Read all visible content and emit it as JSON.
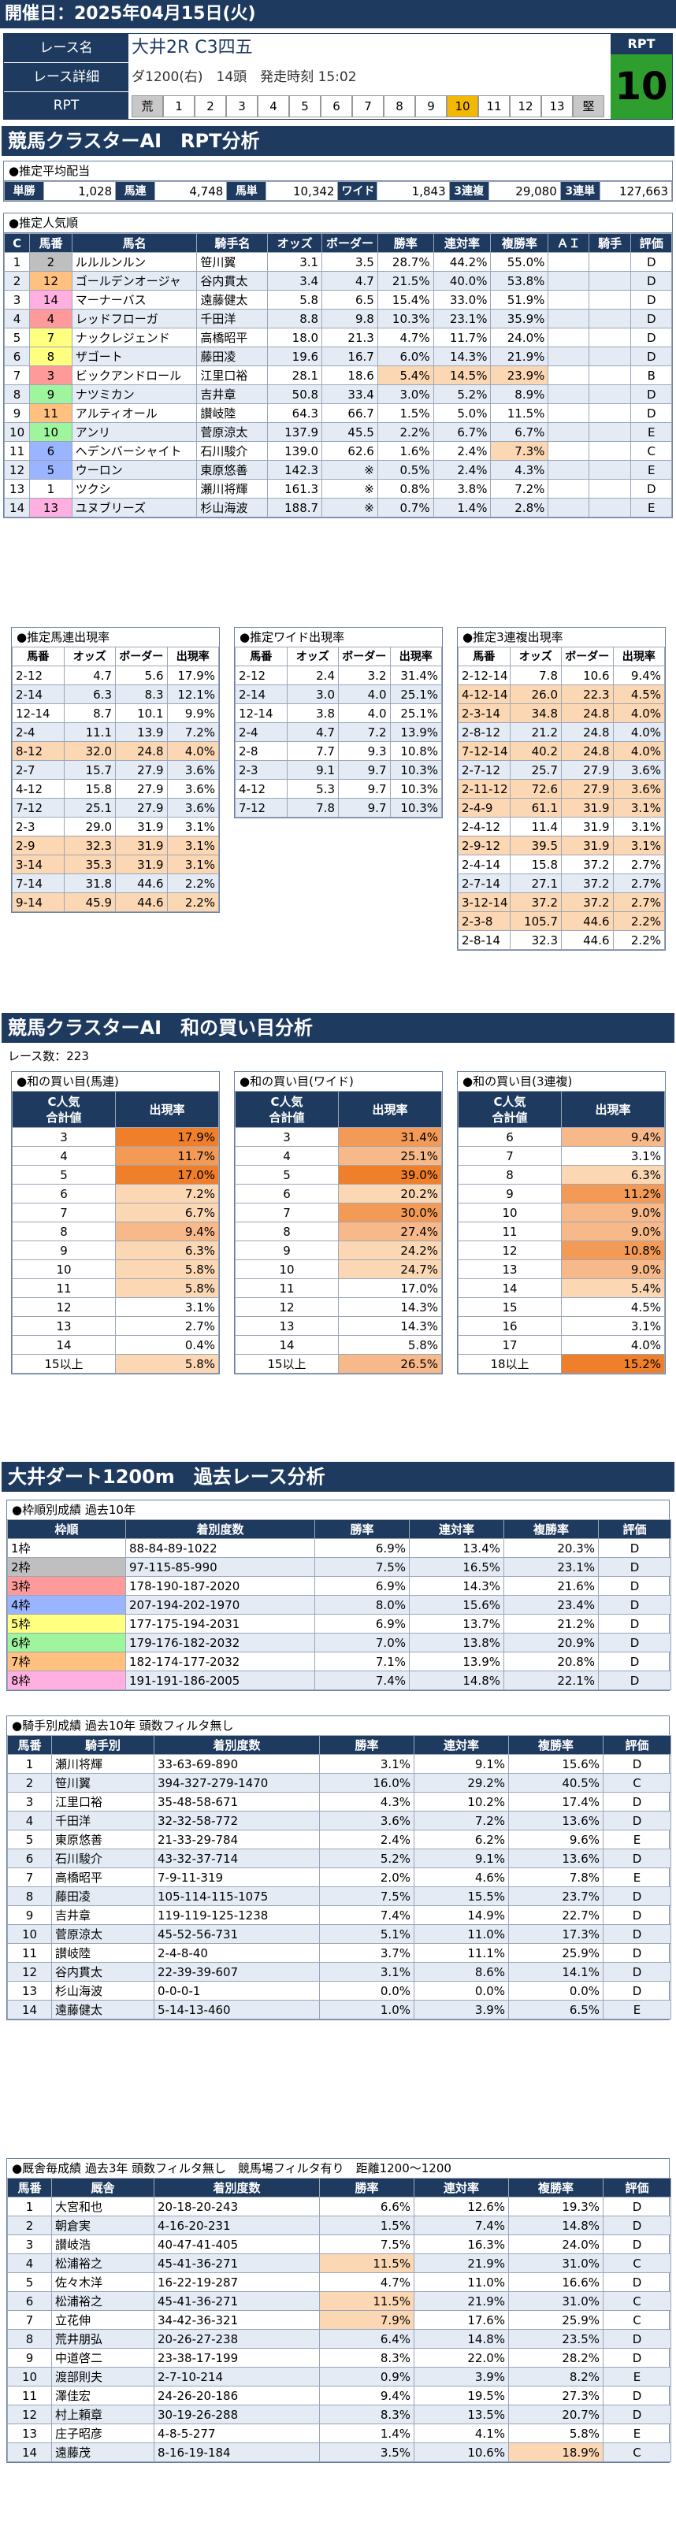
{
  "header": {
    "date": "開催日：2025年04月15日(火)",
    "race_label": "レース名",
    "race_name": "大井2R C3四五",
    "detail_label": "レース詳細",
    "detail_value": "ダ1200(右)　14頭　発走時刻 15:02",
    "rpt_label": "RPT",
    "rpt_value_label": "RPT",
    "rpt_value": "10",
    "scale_start": "荒",
    "scale_end": "堅",
    "scale": [
      "1",
      "2",
      "3",
      "4",
      "5",
      "6",
      "7",
      "8",
      "9",
      "10",
      "11",
      "12",
      "13"
    ],
    "scale_highlight": "10"
  },
  "s1": {
    "title": "競馬クラスターAI　RPT分析",
    "pay_title": "●推定平均配当",
    "pay": [
      [
        "単勝",
        "1,028"
      ],
      [
        "馬連",
        "4,748"
      ],
      [
        "馬単",
        "10,342"
      ],
      [
        "ワイド",
        "1,843"
      ],
      [
        "3連複",
        "29,080"
      ],
      [
        "3連単",
        "127,663"
      ]
    ],
    "pop_title": "●推定人気順",
    "pop_headers": [
      "C",
      "馬番",
      "馬名",
      "騎手名",
      "オッズ",
      "ボーダー",
      "勝率",
      "連対率",
      "複勝率",
      "ＡＩ",
      "騎手",
      "評価"
    ],
    "pop_rows": [
      [
        "1",
        "2",
        "ルルルンルン",
        "笹川翼",
        "3.1",
        "3.5",
        "28.7%",
        "44.2%",
        "55.0%",
        "",
        "",
        "D"
      ],
      [
        "2",
        "12",
        "ゴールデンオージャ",
        "谷内貫太",
        "3.4",
        "4.7",
        "21.5%",
        "40.0%",
        "53.8%",
        "",
        "",
        "D"
      ],
      [
        "3",
        "14",
        "マーナーバス",
        "遠藤健太",
        "5.8",
        "6.5",
        "15.4%",
        "33.0%",
        "51.9%",
        "",
        "",
        "D"
      ],
      [
        "4",
        "4",
        "レッドフローガ",
        "千田洋",
        "8.8",
        "9.8",
        "10.3%",
        "23.1%",
        "35.9%",
        "",
        "",
        "D"
      ],
      [
        "5",
        "7",
        "ナックレジェンド",
        "高橋昭平",
        "18.0",
        "21.3",
        "4.7%",
        "11.7%",
        "24.0%",
        "",
        "",
        "D"
      ],
      [
        "6",
        "8",
        "ザゴート",
        "藤田凌",
        "19.6",
        "16.7",
        "6.0%",
        "14.3%",
        "21.9%",
        "",
        "",
        "D"
      ],
      [
        "7",
        "3",
        "ビックアンドロール",
        "江里口裕",
        "28.1",
        "18.6",
        "5.4%",
        "14.5%",
        "23.9%",
        "",
        "",
        "B"
      ],
      [
        "8",
        "9",
        "ナツミカン",
        "吉井章",
        "50.8",
        "33.4",
        "3.0%",
        "5.2%",
        "8.9%",
        "",
        "",
        "D"
      ],
      [
        "9",
        "11",
        "アルティオール",
        "讃岐陸",
        "64.3",
        "66.7",
        "1.5%",
        "5.0%",
        "11.5%",
        "",
        "",
        "D"
      ],
      [
        "10",
        "10",
        "アンリ",
        "菅原涼太",
        "137.9",
        "45.5",
        "2.2%",
        "6.7%",
        "6.7%",
        "",
        "",
        "E"
      ],
      [
        "11",
        "6",
        "ヘデンバーシャイト",
        "石川駿介",
        "139.0",
        "62.6",
        "1.6%",
        "2.4%",
        "7.3%",
        "",
        "",
        "C"
      ],
      [
        "12",
        "5",
        "ウーロン",
        "東原悠善",
        "142.3",
        "※",
        "0.5%",
        "2.4%",
        "4.3%",
        "",
        "",
        "E"
      ],
      [
        "13",
        "1",
        "ツクシ",
        "瀬川将輝",
        "161.3",
        "※",
        "0.8%",
        "3.8%",
        "7.2%",
        "",
        "",
        "D"
      ],
      [
        "14",
        "13",
        "ユヌブリーズ",
        "杉山海波",
        "188.7",
        "※",
        "0.7%",
        "1.4%",
        "2.8%",
        "",
        "",
        "E"
      ]
    ],
    "umaren_title": "●推定馬連出現率",
    "wide_title": "●推定ワイド出現率",
    "sanren_title": "●推定3連複出現率",
    "mini_headers": [
      "馬番",
      "オッズ",
      "ボーダー",
      "出現率"
    ],
    "umaren": [
      [
        "2-12",
        "4.7",
        "5.6",
        "17.9%"
      ],
      [
        "2-14",
        "6.3",
        "8.3",
        "12.1%"
      ],
      [
        "12-14",
        "8.7",
        "10.1",
        "9.9%"
      ],
      [
        "2-4",
        "11.1",
        "13.9",
        "7.2%"
      ],
      [
        "8-12",
        "32.0",
        "24.8",
        "4.0%"
      ],
      [
        "2-7",
        "15.7",
        "27.9",
        "3.6%"
      ],
      [
        "4-12",
        "15.8",
        "27.9",
        "3.6%"
      ],
      [
        "7-12",
        "25.1",
        "27.9",
        "3.6%"
      ],
      [
        "2-3",
        "29.0",
        "31.9",
        "3.1%"
      ],
      [
        "2-9",
        "32.3",
        "31.9",
        "3.1%"
      ],
      [
        "3-14",
        "35.3",
        "31.9",
        "3.1%"
      ],
      [
        "7-14",
        "31.8",
        "44.6",
        "2.2%"
      ],
      [
        "9-14",
        "45.9",
        "44.6",
        "2.2%"
      ]
    ],
    "wide": [
      [
        "2-12",
        "2.4",
        "3.2",
        "31.4%"
      ],
      [
        "2-14",
        "3.0",
        "4.0",
        "25.1%"
      ],
      [
        "12-14",
        "3.8",
        "4.0",
        "25.1%"
      ],
      [
        "2-4",
        "4.7",
        "7.2",
        "13.9%"
      ],
      [
        "2-8",
        "7.7",
        "9.3",
        "10.8%"
      ],
      [
        "2-3",
        "9.1",
        "9.7",
        "10.3%"
      ],
      [
        "4-12",
        "5.3",
        "9.7",
        "10.3%"
      ],
      [
        "7-12",
        "7.8",
        "9.7",
        "10.3%"
      ]
    ],
    "sanren": [
      [
        "2-12-14",
        "7.8",
        "10.6",
        "9.4%"
      ],
      [
        "4-12-14",
        "26.0",
        "22.3",
        "4.5%"
      ],
      [
        "2-3-14",
        "34.8",
        "24.8",
        "4.0%"
      ],
      [
        "2-8-12",
        "21.2",
        "24.8",
        "4.0%"
      ],
      [
        "7-12-14",
        "40.2",
        "24.8",
        "4.0%"
      ],
      [
        "2-7-12",
        "25.7",
        "27.9",
        "3.6%"
      ],
      [
        "2-11-12",
        "72.6",
        "27.9",
        "3.6%"
      ],
      [
        "2-4-9",
        "61.1",
        "31.9",
        "3.1%"
      ],
      [
        "2-4-12",
        "11.4",
        "31.9",
        "3.1%"
      ],
      [
        "2-9-12",
        "39.5",
        "31.9",
        "3.1%"
      ],
      [
        "2-4-14",
        "15.8",
        "37.2",
        "2.7%"
      ],
      [
        "2-7-14",
        "27.1",
        "37.2",
        "2.7%"
      ],
      [
        "3-12-14",
        "37.2",
        "37.2",
        "2.7%"
      ],
      [
        "2-3-8",
        "105.7",
        "44.6",
        "2.2%"
      ],
      [
        "2-8-14",
        "32.3",
        "44.6",
        "2.2%"
      ]
    ]
  },
  "s2": {
    "title": "競馬クラスターAI　和の買い目分析",
    "count": "レース数：223",
    "t1": "●和の買い目(馬連)",
    "t2": "●和の買い目(ワイド)",
    "t3": "●和の買い目(3連複)",
    "h1": "C人気\n合計値",
    "h2": "出現率",
    "umaren": [
      [
        "3",
        "17.9%"
      ],
      [
        "4",
        "11.7%"
      ],
      [
        "5",
        "17.0%"
      ],
      [
        "6",
        "7.2%"
      ],
      [
        "7",
        "6.7%"
      ],
      [
        "8",
        "9.4%"
      ],
      [
        "9",
        "6.3%"
      ],
      [
        "10",
        "5.8%"
      ],
      [
        "11",
        "5.8%"
      ],
      [
        "12",
        "3.1%"
      ],
      [
        "13",
        "2.7%"
      ],
      [
        "14",
        "0.4%"
      ],
      [
        "15以上",
        "5.8%"
      ]
    ],
    "wide": [
      [
        "3",
        "31.4%"
      ],
      [
        "4",
        "25.1%"
      ],
      [
        "5",
        "39.0%"
      ],
      [
        "6",
        "20.2%"
      ],
      [
        "7",
        "30.0%"
      ],
      [
        "8",
        "27.4%"
      ],
      [
        "9",
        "24.2%"
      ],
      [
        "10",
        "24.7%"
      ],
      [
        "11",
        "17.0%"
      ],
      [
        "12",
        "14.3%"
      ],
      [
        "13",
        "14.3%"
      ],
      [
        "14",
        "5.8%"
      ],
      [
        "15以上",
        "26.5%"
      ]
    ],
    "sanren": [
      [
        "6",
        "9.4%"
      ],
      [
        "7",
        "3.1%"
      ],
      [
        "8",
        "6.3%"
      ],
      [
        "9",
        "11.2%"
      ],
      [
        "10",
        "9.0%"
      ],
      [
        "11",
        "9.0%"
      ],
      [
        "12",
        "10.8%"
      ],
      [
        "13",
        "9.0%"
      ],
      [
        "14",
        "5.4%"
      ],
      [
        "15",
        "4.5%"
      ],
      [
        "16",
        "3.1%"
      ],
      [
        "17",
        "4.0%"
      ],
      [
        "18以上",
        "15.2%"
      ]
    ]
  },
  "s3": {
    "title": "大井ダート1200m　過去レース分析",
    "waku_title": "●枠順別成績 過去10年",
    "waku_headers": [
      "枠順",
      "着別度数",
      "勝率",
      "連対率",
      "複勝率",
      "評価"
    ],
    "waku": [
      [
        "1枠",
        "88-84-89-1022",
        "6.9%",
        "13.4%",
        "20.3%",
        "D"
      ],
      [
        "2枠",
        "97-115-85-990",
        "7.5%",
        "16.5%",
        "23.1%",
        "D"
      ],
      [
        "3枠",
        "178-190-187-2020",
        "6.9%",
        "14.3%",
        "21.6%",
        "D"
      ],
      [
        "4枠",
        "207-194-202-1970",
        "8.0%",
        "15.6%",
        "23.4%",
        "D"
      ],
      [
        "5枠",
        "177-175-194-2031",
        "6.9%",
        "13.7%",
        "21.2%",
        "D"
      ],
      [
        "6枠",
        "179-176-182-2032",
        "7.0%",
        "13.8%",
        "20.9%",
        "D"
      ],
      [
        "7枠",
        "182-174-177-2032",
        "7.1%",
        "13.9%",
        "20.8%",
        "D"
      ],
      [
        "8枠",
        "191-191-186-2005",
        "7.4%",
        "14.8%",
        "22.1%",
        "D"
      ]
    ],
    "jockey_title": "●騎手別成績 過去10年 頭数フィルタ無し",
    "jockey_headers": [
      "馬番",
      "騎手別",
      "着別度数",
      "勝率",
      "連対率",
      "複勝率",
      "評価"
    ],
    "jockey": [
      [
        "1",
        "瀬川将輝",
        "33-63-69-890",
        "3.1%",
        "9.1%",
        "15.6%",
        "D"
      ],
      [
        "2",
        "笹川翼",
        "394-327-279-1470",
        "16.0%",
        "29.2%",
        "40.5%",
        "C"
      ],
      [
        "3",
        "江里口裕",
        "35-48-58-671",
        "4.3%",
        "10.2%",
        "17.4%",
        "D"
      ],
      [
        "4",
        "千田洋",
        "32-32-58-772",
        "3.6%",
        "7.2%",
        "13.6%",
        "D"
      ],
      [
        "5",
        "東原悠善",
        "21-33-29-784",
        "2.4%",
        "6.2%",
        "9.6%",
        "E"
      ],
      [
        "6",
        "石川駿介",
        "43-32-37-714",
        "5.2%",
        "9.1%",
        "13.6%",
        "D"
      ],
      [
        "7",
        "高橋昭平",
        "7-9-11-319",
        "2.0%",
        "4.6%",
        "7.8%",
        "E"
      ],
      [
        "8",
        "藤田凌",
        "105-114-115-1075",
        "7.5%",
        "15.5%",
        "23.7%",
        "D"
      ],
      [
        "9",
        "吉井章",
        "119-119-125-1238",
        "7.4%",
        "14.9%",
        "22.7%",
        "D"
      ],
      [
        "10",
        "菅原涼太",
        "45-52-56-731",
        "5.1%",
        "11.0%",
        "17.3%",
        "D"
      ],
      [
        "11",
        "讃岐陸",
        "2-4-8-40",
        "3.7%",
        "11.1%",
        "25.9%",
        "D"
      ],
      [
        "12",
        "谷内貫太",
        "22-39-39-607",
        "3.1%",
        "8.6%",
        "14.1%",
        "D"
      ],
      [
        "13",
        "杉山海波",
        "0-0-0-1",
        "0.0%",
        "0.0%",
        "0.0%",
        "D"
      ],
      [
        "14",
        "遠藤健太",
        "5-14-13-460",
        "1.0%",
        "3.9%",
        "6.5%",
        "E"
      ]
    ],
    "trainer_title": "●厩舎毎成績 過去3年 頭数フィルタ無し　競馬場フィルタ有り　距離1200～1200",
    "trainer_headers": [
      "馬番",
      "厩舎",
      "着別度数",
      "勝率",
      "連対率",
      "複勝率",
      "評価"
    ],
    "trainer": [
      [
        "1",
        "大宮和也",
        "20-18-20-243",
        "6.6%",
        "12.6%",
        "19.3%",
        "D"
      ],
      [
        "2",
        "朝倉実",
        "4-16-20-231",
        "1.5%",
        "7.4%",
        "14.8%",
        "D"
      ],
      [
        "3",
        "讃岐浩",
        "40-47-41-405",
        "7.5%",
        "16.3%",
        "24.0%",
        "D"
      ],
      [
        "4",
        "松浦裕之",
        "45-41-36-271",
        "11.5%",
        "21.9%",
        "31.0%",
        "C"
      ],
      [
        "5",
        "佐々木洋",
        "16-22-19-287",
        "4.7%",
        "11.0%",
        "16.6%",
        "D"
      ],
      [
        "6",
        "松浦裕之",
        "45-41-36-271",
        "11.5%",
        "21.9%",
        "31.0%",
        "C"
      ],
      [
        "7",
        "立花伸",
        "34-42-36-321",
        "7.9%",
        "17.6%",
        "25.9%",
        "C"
      ],
      [
        "8",
        "荒井朋弘",
        "20-26-27-238",
        "6.4%",
        "14.8%",
        "23.5%",
        "D"
      ],
      [
        "9",
        "中道啓二",
        "23-38-17-199",
        "8.3%",
        "22.0%",
        "28.2%",
        "D"
      ],
      [
        "10",
        "渡部則夫",
        "2-7-10-214",
        "0.9%",
        "3.9%",
        "8.2%",
        "E"
      ],
      [
        "11",
        "澤佳宏",
        "24-26-20-186",
        "9.4%",
        "19.5%",
        "27.3%",
        "D"
      ],
      [
        "12",
        "村上頼章",
        "30-19-26-288",
        "8.3%",
        "13.5%",
        "20.7%",
        "D"
      ],
      [
        "13",
        "庄子昭彦",
        "4-8-5-277",
        "1.4%",
        "4.1%",
        "5.8%",
        "E"
      ],
      [
        "14",
        "遠藤茂",
        "8-16-19-184",
        "3.5%",
        "10.6%",
        "18.9%",
        "C"
      ]
    ]
  },
  "colors": {
    "navy": "#1e3a5f",
    "rpt_green": "#2e9e2e",
    "gold": "#f5b800"
  },
  "waku_colors": [
    "#ffffff",
    "#bfbfbf",
    "#ff9a9a",
    "#9ab4ff",
    "#ffff80",
    "#9ef59e",
    "#ffc080",
    "#ffb0e0"
  ]
}
